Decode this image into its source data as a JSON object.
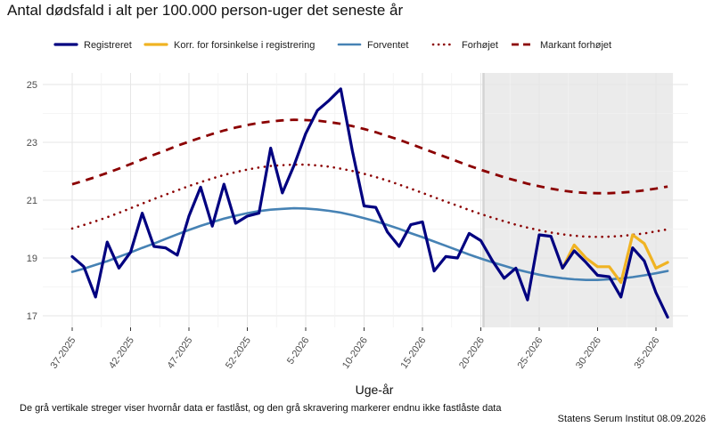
{
  "chart_data": {
    "type": "line",
    "title": "Antal dødsfald i alt per 100.000 person-uger det seneste år",
    "xlabel": "Uge-år",
    "ylabel": "",
    "ylim": [
      16.6,
      25.4
    ],
    "yticks": [
      17,
      19,
      21,
      23,
      25
    ],
    "grid": true,
    "legend_position": "top",
    "x_ticks": [
      "37-2025",
      "42-2025",
      "47-2025",
      "52-2025",
      "5-2026",
      "10-2026",
      "15-2026",
      "20-2026",
      "25-2026",
      "30-2026",
      "35-2026"
    ],
    "x": [
      "37-2025",
      "38-2025",
      "39-2025",
      "40-2025",
      "41-2025",
      "42-2025",
      "43-2025",
      "44-2025",
      "45-2025",
      "46-2025",
      "47-2025",
      "48-2025",
      "49-2025",
      "50-2025",
      "51-2025",
      "52-2025",
      "1-2026",
      "2-2026",
      "3-2026",
      "4-2026",
      "5-2026",
      "6-2026",
      "7-2026",
      "8-2026",
      "9-2026",
      "10-2026",
      "11-2026",
      "12-2026",
      "13-2026",
      "14-2026",
      "15-2026",
      "16-2026",
      "17-2026",
      "18-2026",
      "19-2026",
      "20-2026",
      "21-2026",
      "22-2026",
      "23-2026",
      "24-2026",
      "25-2026",
      "26-2026",
      "27-2026",
      "28-2026",
      "29-2026",
      "30-2026",
      "31-2026",
      "32-2026",
      "33-2026",
      "34-2026",
      "35-2026",
      "36-2026"
    ],
    "shaded_region": {
      "from": "20-2026",
      "to": "36-2026",
      "color": "#ebebeb"
    },
    "locked_marker": "20-2026",
    "series": [
      {
        "name": "Registreret",
        "color": "#000080",
        "style": "solid",
        "values": [
          19.05,
          18.7,
          17.65,
          19.55,
          18.65,
          19.2,
          20.55,
          19.4,
          19.35,
          19.1,
          20.45,
          21.45,
          20.1,
          21.55,
          20.2,
          20.45,
          20.55,
          22.8,
          21.25,
          22.2,
          23.3,
          24.1,
          24.45,
          24.85,
          22.7,
          20.8,
          20.75,
          19.9,
          19.4,
          20.15,
          20.25,
          18.55,
          19.05,
          19.0,
          19.85,
          19.6,
          18.9,
          18.3,
          18.65,
          17.55,
          19.8,
          19.75,
          18.65,
          19.25,
          18.85,
          18.4,
          18.35,
          17.65,
          19.35,
          18.9,
          17.8,
          16.95
        ]
      },
      {
        "name": "Korr. for forsinkelse i registrering",
        "color": "#f0b323",
        "style": "solid",
        "values": [
          null,
          null,
          null,
          null,
          null,
          null,
          null,
          null,
          null,
          null,
          null,
          null,
          null,
          null,
          null,
          null,
          null,
          null,
          null,
          null,
          null,
          null,
          null,
          null,
          null,
          null,
          null,
          null,
          null,
          null,
          null,
          null,
          null,
          null,
          null,
          null,
          null,
          null,
          null,
          null,
          null,
          null,
          18.65,
          19.45,
          19.0,
          18.7,
          18.7,
          18.15,
          19.8,
          19.5,
          18.65,
          18.85
        ]
      },
      {
        "name": "Forventet",
        "color": "#4682b4",
        "style": "solid",
        "values": [
          18.52,
          18.63,
          18.76,
          18.89,
          19.04,
          19.19,
          19.35,
          19.5,
          19.66,
          19.82,
          19.97,
          20.11,
          20.24,
          20.36,
          20.46,
          20.55,
          20.62,
          20.67,
          20.7,
          20.72,
          20.71,
          20.68,
          20.63,
          20.57,
          20.48,
          20.38,
          20.27,
          20.14,
          20.01,
          19.86,
          19.72,
          19.57,
          19.42,
          19.27,
          19.12,
          18.98,
          18.85,
          18.73,
          18.61,
          18.51,
          18.42,
          18.35,
          18.3,
          18.26,
          18.24,
          18.24,
          18.26,
          18.29,
          18.34,
          18.4,
          18.47,
          18.55
        ]
      },
      {
        "name": "Forhøjet",
        "color": "#8b0000",
        "style": "dotted",
        "values": [
          20.02,
          20.14,
          20.27,
          20.41,
          20.56,
          20.72,
          20.88,
          21.04,
          21.19,
          21.34,
          21.49,
          21.62,
          21.75,
          21.87,
          21.97,
          22.06,
          22.13,
          22.18,
          22.21,
          22.23,
          22.23,
          22.2,
          22.16,
          22.09,
          22.01,
          21.91,
          21.8,
          21.68,
          21.54,
          21.4,
          21.25,
          21.1,
          20.95,
          20.81,
          20.66,
          20.52,
          20.39,
          20.27,
          20.15,
          20.05,
          19.96,
          19.88,
          19.82,
          19.77,
          19.74,
          19.73,
          19.74,
          19.76,
          19.8,
          19.85,
          19.92,
          19.99
        ]
      },
      {
        "name": "Markant forhøjet",
        "color": "#8b0000",
        "style": "dashed",
        "values": [
          21.55,
          21.67,
          21.8,
          21.94,
          22.09,
          22.25,
          22.41,
          22.57,
          22.72,
          22.88,
          23.02,
          23.16,
          23.29,
          23.41,
          23.51,
          23.6,
          23.67,
          23.72,
          23.76,
          23.78,
          23.77,
          23.75,
          23.7,
          23.64,
          23.56,
          23.46,
          23.35,
          23.22,
          23.09,
          22.94,
          22.79,
          22.64,
          22.49,
          22.34,
          22.19,
          22.05,
          21.92,
          21.79,
          21.68,
          21.57,
          21.48,
          21.4,
          21.33,
          21.28,
          21.25,
          21.24,
          21.24,
          21.26,
          21.29,
          21.34,
          21.4,
          21.47
        ]
      }
    ]
  },
  "caption": "De grå vertikale streger viser hvornår data er fastlåst, og den grå skravering markerer endnu ikke fastlåste data",
  "source": "Statens Serum Institut  08.09.2026"
}
